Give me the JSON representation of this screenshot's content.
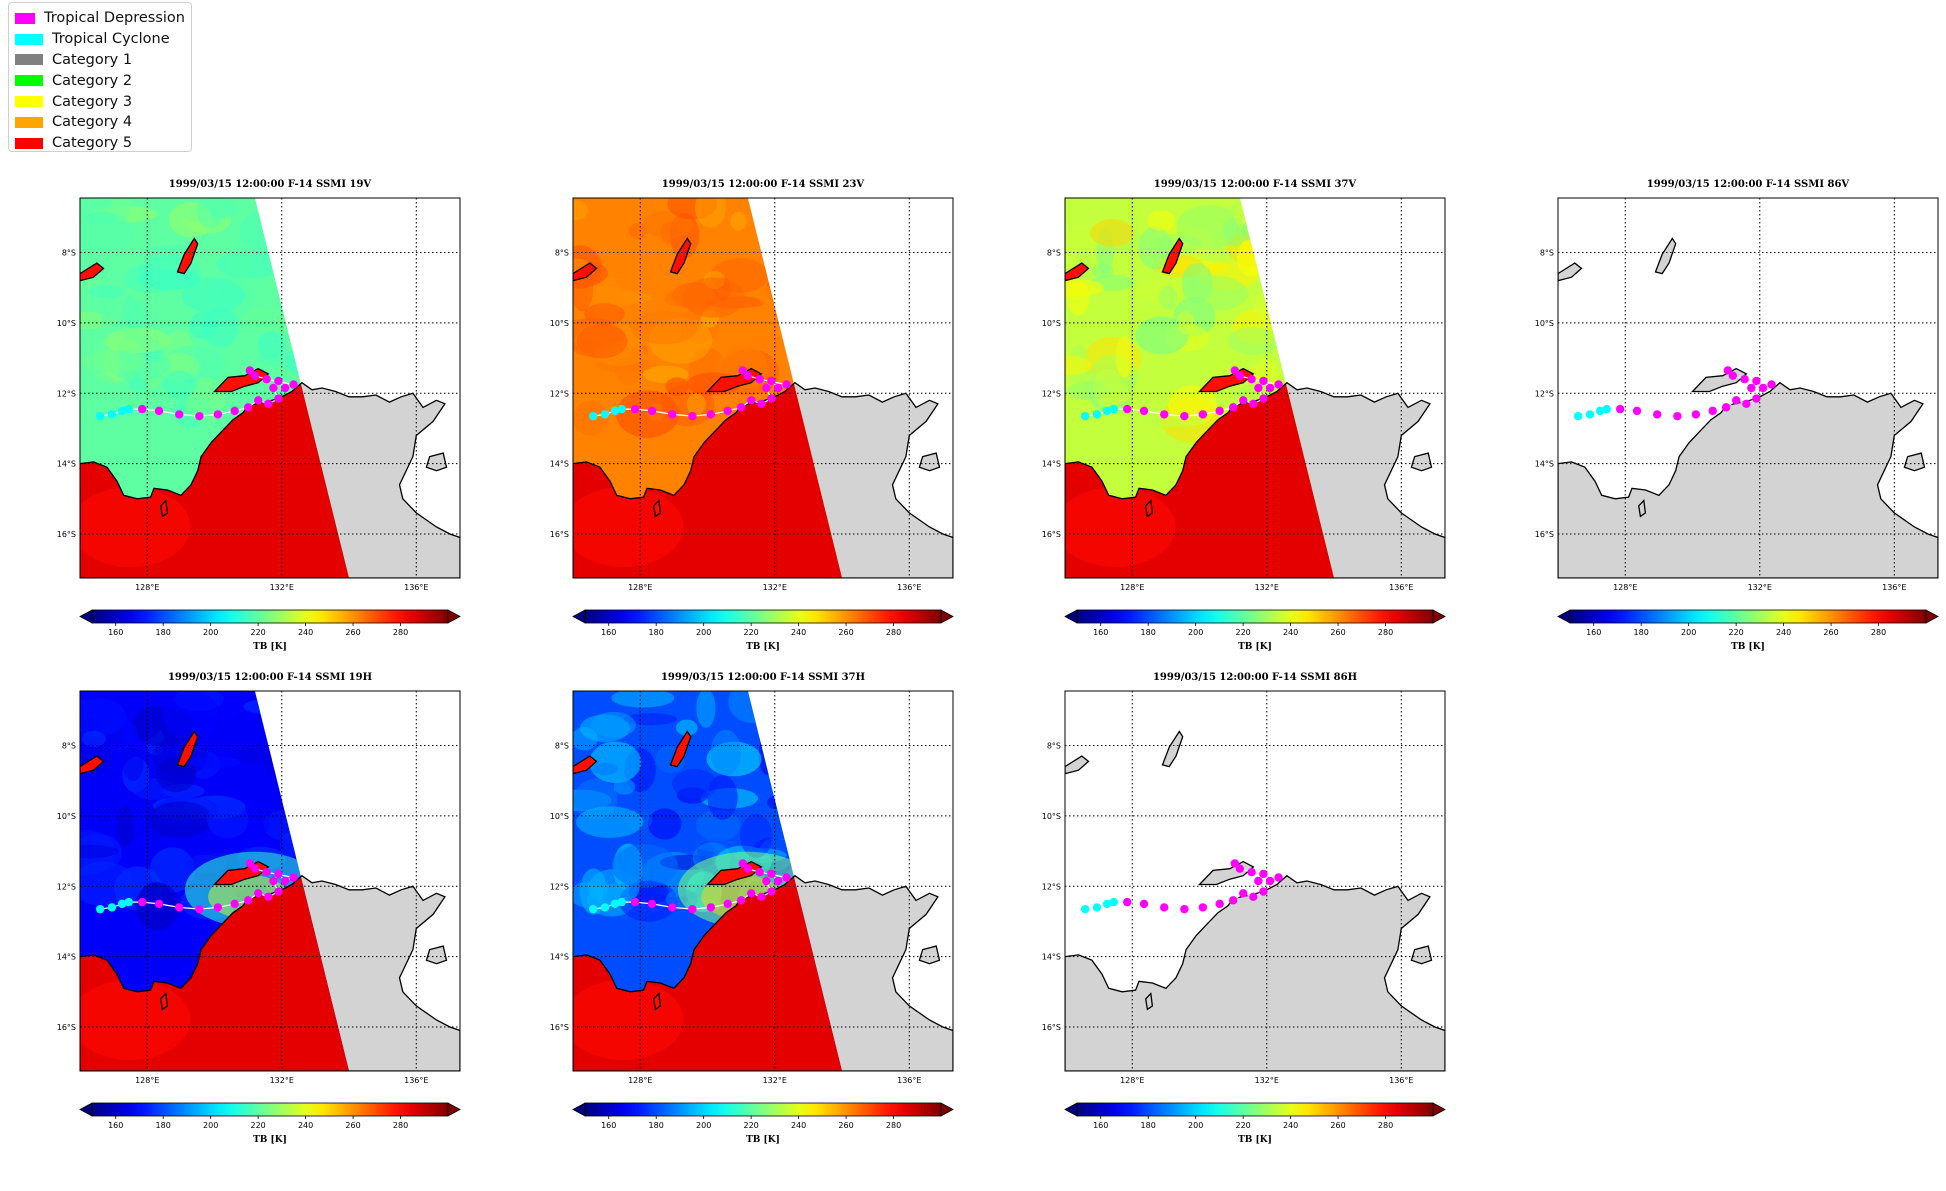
{
  "legend": {
    "items": [
      {
        "label": "Tropical Depression",
        "color": "#ff00ff"
      },
      {
        "label": "Tropical Cyclone",
        "color": "#00ffff"
      },
      {
        "label": "Category 1",
        "color": "#808080"
      },
      {
        "label": "Category 2",
        "color": "#00ff00"
      },
      {
        "label": "Category 3",
        "color": "#ffff00"
      },
      {
        "label": "Category 4",
        "color": "#ffa500"
      },
      {
        "label": "Category 5",
        "color": "#ff0000"
      }
    ]
  },
  "chart_data": [
    {
      "type": "heatmap",
      "title": "1999/03/15 12:00:00  F-14 SSMI 19V",
      "channel": "19V",
      "field_style": "warm-low",
      "base_tb": 220,
      "land_tb": 285,
      "swath": true,
      "x_ticks": [
        "128°E",
        "132°E",
        "136°E"
      ],
      "y_ticks": [
        "8°S",
        "10°S",
        "12°S",
        "14°S",
        "16°S"
      ],
      "colorbar": {
        "label": "TB [K]",
        "ticks": [
          160,
          180,
          200,
          220,
          240,
          260,
          280
        ],
        "range": [
          150,
          300
        ],
        "extend": "both"
      }
    },
    {
      "type": "heatmap",
      "title": "1999/03/15 12:00:00  F-14 SSMI 23V",
      "channel": "23V",
      "field_style": "warm-high",
      "base_tb": 262,
      "land_tb": 285,
      "swath": true,
      "x_ticks": [
        "128°E",
        "132°E",
        "136°E"
      ],
      "y_ticks": [
        "8°S",
        "10°S",
        "12°S",
        "14°S",
        "16°S"
      ],
      "colorbar": {
        "label": "TB [K]",
        "ticks": [
          160,
          180,
          200,
          220,
          240,
          260,
          280
        ],
        "range": [
          150,
          300
        ],
        "extend": "both"
      }
    },
    {
      "type": "heatmap",
      "title": "1999/03/15 12:00:00  F-14 SSMI 37V",
      "channel": "37V",
      "field_style": "warm-mid",
      "base_tb": 235,
      "land_tb": 285,
      "swath": true,
      "x_ticks": [
        "128°E",
        "132°E",
        "136°E"
      ],
      "y_ticks": [
        "8°S",
        "10°S",
        "12°S",
        "14°S",
        "16°S"
      ],
      "colorbar": {
        "label": "TB [K]",
        "ticks": [
          160,
          180,
          200,
          220,
          240,
          260,
          280
        ],
        "range": [
          150,
          300
        ],
        "extend": "both"
      }
    },
    {
      "type": "heatmap",
      "title": "1999/03/15 12:00:00  F-14 SSMI 86V",
      "channel": "86V",
      "field_style": "none",
      "base_tb": null,
      "land_tb": null,
      "swath": false,
      "x_ticks": [
        "128°E",
        "132°E",
        "136°E"
      ],
      "y_ticks": [
        "8°S",
        "10°S",
        "12°S",
        "14°S",
        "16°S"
      ],
      "colorbar": {
        "label": "TB [K]",
        "ticks": [
          160,
          180,
          200,
          220,
          240,
          260,
          280
        ],
        "range": [
          150,
          300
        ],
        "extend": "both"
      }
    },
    {
      "type": "heatmap",
      "title": "1999/03/15 12:00:00  F-14 SSMI 19H",
      "channel": "19H",
      "field_style": "cold",
      "base_tb": 168,
      "land_tb": 285,
      "swath": true,
      "x_ticks": [
        "128°E",
        "132°E",
        "136°E"
      ],
      "y_ticks": [
        "8°S",
        "10°S",
        "12°S",
        "14°S",
        "16°S"
      ],
      "colorbar": {
        "label": "TB [K]",
        "ticks": [
          160,
          180,
          200,
          220,
          240,
          260,
          280
        ],
        "range": [
          150,
          300
        ],
        "extend": "both"
      }
    },
    {
      "type": "heatmap",
      "title": "1999/03/15 12:00:00  F-14 SSMI 37H",
      "channel": "37H",
      "field_style": "cold-mid",
      "base_tb": 180,
      "land_tb": 285,
      "swath": true,
      "x_ticks": [
        "128°E",
        "132°E",
        "136°E"
      ],
      "y_ticks": [
        "8°S",
        "10°S",
        "12°S",
        "14°S",
        "16°S"
      ],
      "colorbar": {
        "label": "TB [K]",
        "ticks": [
          160,
          180,
          200,
          220,
          240,
          260,
          280
        ],
        "range": [
          150,
          300
        ],
        "extend": "both"
      }
    },
    {
      "type": "heatmap",
      "title": "1999/03/15 12:00:00  F-14 SSMI 86H",
      "channel": "86H",
      "field_style": "none",
      "base_tb": null,
      "land_tb": null,
      "swath": false,
      "x_ticks": [
        "128°E",
        "132°E",
        "136°E"
      ],
      "y_ticks": [
        "8°S",
        "10°S",
        "12°S",
        "14°S",
        "16°S"
      ],
      "colorbar": {
        "label": "TB [K]",
        "ticks": [
          160,
          180,
          200,
          220,
          240,
          260,
          280
        ],
        "range": [
          150,
          300
        ],
        "extend": "both"
      }
    }
  ],
  "track": {
    "points": [
      {
        "lon": 126.6,
        "lat": -12.65,
        "cat": "Tropical Cyclone"
      },
      {
        "lon": 126.95,
        "lat": -12.6,
        "cat": "Tropical Cyclone"
      },
      {
        "lon": 127.25,
        "lat": -12.5,
        "cat": "Tropical Cyclone"
      },
      {
        "lon": 127.45,
        "lat": -12.45,
        "cat": "Tropical Cyclone"
      },
      {
        "lon": 127.85,
        "lat": -12.45,
        "cat": "Tropical Depression"
      },
      {
        "lon": 128.35,
        "lat": -12.5,
        "cat": "Tropical Depression"
      },
      {
        "lon": 128.95,
        "lat": -12.6,
        "cat": "Tropical Depression"
      },
      {
        "lon": 129.55,
        "lat": -12.65,
        "cat": "Tropical Depression"
      },
      {
        "lon": 130.1,
        "lat": -12.6,
        "cat": "Tropical Depression"
      },
      {
        "lon": 130.6,
        "lat": -12.5,
        "cat": "Tropical Depression"
      },
      {
        "lon": 131.0,
        "lat": -12.4,
        "cat": "Tropical Depression"
      },
      {
        "lon": 131.3,
        "lat": -12.2,
        "cat": "Tropical Depression"
      },
      {
        "lon": 131.6,
        "lat": -12.3,
        "cat": "Tropical Depression"
      },
      {
        "lon": 131.9,
        "lat": -12.15,
        "cat": "Tropical Depression"
      },
      {
        "lon": 131.75,
        "lat": -11.85,
        "cat": "Tropical Depression"
      },
      {
        "lon": 131.9,
        "lat": -11.65,
        "cat": "Tropical Depression"
      },
      {
        "lon": 132.1,
        "lat": -11.85,
        "cat": "Tropical Depression"
      },
      {
        "lon": 132.35,
        "lat": -11.75,
        "cat": "Tropical Depression"
      },
      {
        "lon": 131.55,
        "lat": -11.6,
        "cat": "Tropical Depression"
      },
      {
        "lon": 131.2,
        "lat": -11.5,
        "cat": "Tropical Depression"
      },
      {
        "lon": 131.05,
        "lat": -11.35,
        "cat": "Tropical Depression"
      }
    ]
  }
}
